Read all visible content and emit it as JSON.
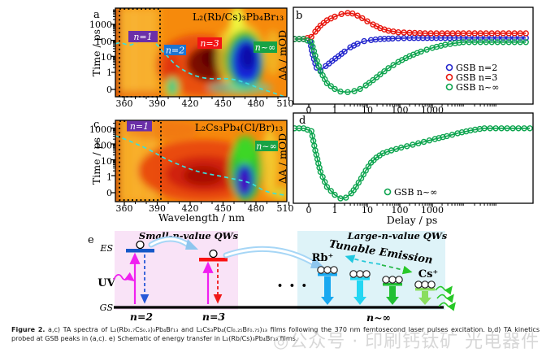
{
  "panels": {
    "letters": {
      "a": "a",
      "b": "b",
      "c": "c",
      "d": "d",
      "e": "e"
    },
    "e": {
      "small_qw_title": "Small-n-value QWs",
      "large_qw_title": "Large-n-value QWs",
      "es": "ES",
      "gs": "GS",
      "uv": "UV",
      "dots": "• • •",
      "rb": "Rb⁺",
      "cs": "Cs⁺",
      "tunable": "Tunable Emission",
      "n2": "n=2",
      "n3": "n=3",
      "ninf": "n~∞",
      "small_box_color": "#f9e3f7",
      "large_box_color": "#def3f8",
      "qw_arrow_colors": [
        "#18a8f0",
        "#24d6f2",
        "#22c034",
        "#8ade5e"
      ]
    }
  },
  "chart_data": [
    {
      "id": "a",
      "type": "heatmap",
      "title": "L₂(Rb/Cs)₃Pb₄Br₁₃",
      "title_color": "#2222b8",
      "xlabel": "Wavelength / nm",
      "ylabel": "Time / ps",
      "x_ticks": [
        "360",
        "390",
        "420",
        "450",
        "480",
        "510"
      ],
      "y_ticks": [
        "0",
        "1",
        "10",
        "100",
        "1000"
      ],
      "x_range_nm": [
        355,
        510
      ],
      "annotations": [
        {
          "label": "n=1",
          "color": "#6b2fa8"
        },
        {
          "label": "n=2",
          "color": "#1d74d2"
        },
        {
          "label": "n=3",
          "color": "#f21414"
        },
        {
          "label": "n~∞",
          "color": "#17a345"
        }
      ],
      "features": [
        "dotted box marks 355–390 nm n=1 region",
        "dark-red photoinduced absorption ~425–445 nm",
        "deep-blue ground-state bleach ~460–485 nm",
        "cyan dashed guide line tracks bleach evolution"
      ]
    },
    {
      "id": "b",
      "type": "scatter",
      "ylabel": "ΔA / mOD",
      "x_ticks": [
        "0",
        "1",
        "10",
        "100",
        "1000"
      ],
      "x_scale": "symlog delay (ps)",
      "y_axis_numeric_labels": false,
      "y_units": "normalized to n~∞ bleach minimum = -1 (no numeric labels shown)",
      "legend_position": "lower right",
      "series": [
        {
          "name": "GSB n=2",
          "color": "#2326cd",
          "points": [
            [
              -0.55,
              0
            ],
            [
              -0.2,
              0
            ],
            [
              0.05,
              -0.05
            ],
            [
              0.15,
              -0.3
            ],
            [
              0.3,
              -0.55
            ],
            [
              0.45,
              -0.6
            ],
            [
              0.65,
              -0.52
            ],
            [
              0.9,
              -0.42
            ],
            [
              1.3,
              -0.33
            ],
            [
              2,
              -0.24
            ],
            [
              3,
              -0.16
            ],
            [
              5,
              -0.09
            ],
            [
              8,
              -0.04
            ],
            [
              13,
              -0.02
            ],
            [
              25,
              0
            ],
            [
              60,
              0.01
            ],
            [
              200,
              0.02
            ],
            [
              700,
              0.02
            ],
            [
              2500,
              0.02
            ],
            [
              9000,
              0.02
            ]
          ]
        },
        {
          "name": "GSB n=3",
          "color": "#e8150c",
          "points": [
            [
              -0.55,
              0
            ],
            [
              -0.2,
              0
            ],
            [
              0.1,
              0.04
            ],
            [
              0.25,
              0.14
            ],
            [
              0.45,
              0.26
            ],
            [
              0.7,
              0.36
            ],
            [
              1,
              0.43
            ],
            [
              1.6,
              0.48
            ],
            [
              2.5,
              0.5
            ],
            [
              3.5,
              0.49
            ],
            [
              5,
              0.45
            ],
            [
              7,
              0.4
            ],
            [
              10,
              0.34
            ],
            [
              15,
              0.28
            ],
            [
              25,
              0.21
            ],
            [
              45,
              0.16
            ],
            [
              90,
              0.13
            ],
            [
              200,
              0.12
            ],
            [
              600,
              0.11
            ],
            [
              2000,
              0.11
            ],
            [
              9000,
              0.11
            ]
          ]
        },
        {
          "name": "GSB n~∞",
          "color": "#0ca44e",
          "points": [
            [
              -0.55,
              0
            ],
            [
              -0.2,
              0
            ],
            [
              0.1,
              -0.06
            ],
            [
              0.25,
              -0.32
            ],
            [
              0.45,
              -0.62
            ],
            [
              0.7,
              -0.85
            ],
            [
              1,
              -0.96
            ],
            [
              1.5,
              -1.01
            ],
            [
              2.5,
              -1.02
            ],
            [
              4,
              -1.0
            ],
            [
              6,
              -0.96
            ],
            [
              9,
              -0.89
            ],
            [
              15,
              -0.79
            ],
            [
              25,
              -0.68
            ],
            [
              45,
              -0.56
            ],
            [
              90,
              -0.44
            ],
            [
              200,
              -0.33
            ],
            [
              450,
              -0.24
            ],
            [
              1000,
              -0.17
            ],
            [
              2500,
              -0.11
            ],
            [
              5000,
              -0.08
            ],
            [
              9000,
              -0.06
            ]
          ]
        }
      ]
    },
    {
      "id": "c",
      "type": "heatmap",
      "title": "L₂Cs₃Pb₄(Cl/Br)₁₃",
      "title_color": "#111111",
      "xlabel": "Wavelength / nm",
      "ylabel": "Time / ps",
      "x_ticks": [
        "360",
        "390",
        "420",
        "450",
        "480",
        "510"
      ],
      "y_ticks": [
        "0",
        "1",
        "10",
        "100",
        "1000"
      ],
      "x_range_nm": [
        355,
        510
      ],
      "annotations": [
        {
          "label": "n=1",
          "color": "#6b2fa8"
        },
        {
          "label": "n~∞",
          "color": "#17a345"
        }
      ],
      "features": [
        "dotted box marks 355–390 nm n=1 region",
        "broad red absorption ~410–455 nm",
        "blue-violet bleach ~460–480 nm at early delays",
        "cyan dashed guide line"
      ]
    },
    {
      "id": "d",
      "type": "scatter",
      "xlabel": "Delay / ps",
      "ylabel": "ΔA / mOD",
      "x_ticks": [
        "0",
        "1",
        "10",
        "100",
        "1000"
      ],
      "x_scale": "symlog delay (ps)",
      "y_axis_numeric_labels": false,
      "y_units": "normalized to bleach minimum = -1 (no numeric labels shown)",
      "legend_position": "lower right",
      "series": [
        {
          "name": "GSB n~∞",
          "color": "#0ca44e",
          "points": [
            [
              -0.55,
              -0.02
            ],
            [
              -0.2,
              -0.02
            ],
            [
              0.1,
              -0.06
            ],
            [
              0.25,
              -0.33
            ],
            [
              0.45,
              -0.63
            ],
            [
              0.7,
              -0.84
            ],
            [
              1,
              -0.95
            ],
            [
              1.5,
              -1.0
            ],
            [
              2.2,
              -0.99
            ],
            [
              3.2,
              -0.93
            ],
            [
              4.5,
              -0.84
            ],
            [
              6.5,
              -0.72
            ],
            [
              9,
              -0.61
            ],
            [
              13,
              -0.5
            ],
            [
              19,
              -0.43
            ],
            [
              30,
              -0.37
            ],
            [
              55,
              -0.33
            ],
            [
              110,
              -0.29
            ],
            [
              250,
              -0.25
            ],
            [
              550,
              -0.21
            ],
            [
              1200,
              -0.17
            ],
            [
              2800,
              -0.13
            ],
            [
              6000,
              -0.09
            ],
            [
              15000,
              -0.05
            ],
            [
              40000,
              -0.02
            ]
          ]
        }
      ]
    }
  ],
  "caption": {
    "label": "Figure 2.",
    "line1": "a,c) TA spectra of L₂(Rb₀.₇Cs₀.₃)₃Pb₄Br₁₃ and L₂Cs₃Pb₄(Cl₀.₂₅Br₀.₇₅)₁₃ films following the 370 nm femtosecond laser pulses excitation.",
    "line2": "b,d) TA kinetics probed at GSB peaks in (a,c). e) Schematic of energy transfer in L₂(Rb/Cs)₃Pb₄Br₁₃ films."
  },
  "watermark": {
    "text": "◎公众号 · 印刷钙钛矿 光电器件"
  }
}
